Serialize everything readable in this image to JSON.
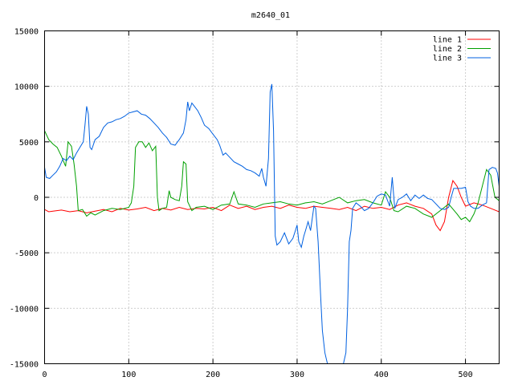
{
  "chart_data": {
    "type": "line",
    "title": "m2640_01",
    "xlabel": "",
    "ylabel": "",
    "xlim": [
      0,
      540
    ],
    "ylim": [
      -15000,
      15000
    ],
    "x_ticks": [
      0,
      100,
      200,
      300,
      400,
      500
    ],
    "y_ticks": [
      -15000,
      -10000,
      -5000,
      0,
      5000,
      10000,
      15000
    ],
    "grid": true,
    "legend_position": "top-right",
    "series": [
      {
        "name": "line 1",
        "color": "#ff0000",
        "points": [
          [
            0,
            -1100
          ],
          [
            5,
            -1300
          ],
          [
            10,
            -1250
          ],
          [
            20,
            -1150
          ],
          [
            30,
            -1300
          ],
          [
            40,
            -1200
          ],
          [
            50,
            -1400
          ],
          [
            60,
            -1250
          ],
          [
            70,
            -1100
          ],
          [
            80,
            -1300
          ],
          [
            90,
            -1000
          ],
          [
            100,
            -1150
          ],
          [
            110,
            -1050
          ],
          [
            120,
            -900
          ],
          [
            130,
            -1200
          ],
          [
            140,
            -1000
          ],
          [
            150,
            -1150
          ],
          [
            160,
            -900
          ],
          [
            170,
            -1100
          ],
          [
            180,
            -1000
          ],
          [
            190,
            -1050
          ],
          [
            200,
            -900
          ],
          [
            210,
            -1200
          ],
          [
            220,
            -700
          ],
          [
            230,
            -1000
          ],
          [
            240,
            -800
          ],
          [
            250,
            -1100
          ],
          [
            260,
            -900
          ],
          [
            270,
            -800
          ],
          [
            280,
            -1000
          ],
          [
            290,
            -700
          ],
          [
            300,
            -900
          ],
          [
            310,
            -1000
          ],
          [
            320,
            -800
          ],
          [
            330,
            -900
          ],
          [
            340,
            -1000
          ],
          [
            350,
            -1100
          ],
          [
            360,
            -900
          ],
          [
            370,
            -1200
          ],
          [
            380,
            -800
          ],
          [
            390,
            -1000
          ],
          [
            400,
            -900
          ],
          [
            410,
            -1100
          ],
          [
            420,
            -700
          ],
          [
            430,
            -500
          ],
          [
            440,
            -800
          ],
          [
            450,
            -1000
          ],
          [
            460,
            -1500
          ],
          [
            465,
            -2500
          ],
          [
            470,
            -3000
          ],
          [
            475,
            -2200
          ],
          [
            480,
            0
          ],
          [
            485,
            1500
          ],
          [
            490,
            1000
          ],
          [
            495,
            0
          ],
          [
            500,
            -800
          ],
          [
            510,
            -500
          ],
          [
            520,
            -700
          ],
          [
            530,
            -1000
          ],
          [
            540,
            -1300
          ]
        ]
      },
      {
        "name": "line 2",
        "color": "#00a000",
        "points": [
          [
            0,
            6000
          ],
          [
            5,
            5200
          ],
          [
            10,
            4800
          ],
          [
            15,
            4500
          ],
          [
            20,
            3700
          ],
          [
            25,
            2800
          ],
          [
            28,
            5000
          ],
          [
            32,
            4600
          ],
          [
            35,
            3000
          ],
          [
            38,
            1000
          ],
          [
            40,
            -1200
          ],
          [
            45,
            -1100
          ],
          [
            50,
            -1700
          ],
          [
            55,
            -1400
          ],
          [
            60,
            -1600
          ],
          [
            70,
            -1200
          ],
          [
            80,
            -1000
          ],
          [
            90,
            -1100
          ],
          [
            100,
            -900
          ],
          [
            103,
            -500
          ],
          [
            106,
            1000
          ],
          [
            108,
            4500
          ],
          [
            112,
            5000
          ],
          [
            116,
            5000
          ],
          [
            120,
            4500
          ],
          [
            124,
            4900
          ],
          [
            128,
            4200
          ],
          [
            132,
            4600
          ],
          [
            134,
            0
          ],
          [
            136,
            -1200
          ],
          [
            140,
            -1000
          ],
          [
            145,
            -900
          ],
          [
            148,
            600
          ],
          [
            150,
            0
          ],
          [
            155,
            -200
          ],
          [
            160,
            -300
          ],
          [
            163,
            1000
          ],
          [
            165,
            3200
          ],
          [
            168,
            3000
          ],
          [
            170,
            -400
          ],
          [
            175,
            -1200
          ],
          [
            180,
            -900
          ],
          [
            190,
            -800
          ],
          [
            200,
            -1100
          ],
          [
            210,
            -700
          ],
          [
            220,
            -600
          ],
          [
            225,
            500
          ],
          [
            230,
            -600
          ],
          [
            240,
            -700
          ],
          [
            250,
            -900
          ],
          [
            260,
            -600
          ],
          [
            270,
            -500
          ],
          [
            280,
            -400
          ],
          [
            290,
            -600
          ],
          [
            300,
            -700
          ],
          [
            310,
            -500
          ],
          [
            320,
            -400
          ],
          [
            330,
            -600
          ],
          [
            340,
            -300
          ],
          [
            350,
            0
          ],
          [
            360,
            -500
          ],
          [
            370,
            -300
          ],
          [
            380,
            -200
          ],
          [
            390,
            -500
          ],
          [
            400,
            -700
          ],
          [
            405,
            500
          ],
          [
            410,
            0
          ],
          [
            415,
            -1200
          ],
          [
            420,
            -1300
          ],
          [
            430,
            -800
          ],
          [
            440,
            -1000
          ],
          [
            450,
            -1500
          ],
          [
            460,
            -1800
          ],
          [
            470,
            -1200
          ],
          [
            480,
            -600
          ],
          [
            490,
            -1500
          ],
          [
            495,
            -2000
          ],
          [
            500,
            -1800
          ],
          [
            505,
            -2200
          ],
          [
            510,
            -1500
          ],
          [
            515,
            -500
          ],
          [
            520,
            1000
          ],
          [
            525,
            2500
          ],
          [
            530,
            2000
          ],
          [
            535,
            0
          ],
          [
            540,
            -300
          ]
        ]
      },
      {
        "name": "line 3",
        "color": "#0060e0",
        "points": [
          [
            0,
            2700
          ],
          [
            2,
            1800
          ],
          [
            6,
            1700
          ],
          [
            10,
            2000
          ],
          [
            14,
            2300
          ],
          [
            18,
            2800
          ],
          [
            22,
            3500
          ],
          [
            26,
            3300
          ],
          [
            30,
            3700
          ],
          [
            34,
            3400
          ],
          [
            38,
            4000
          ],
          [
            42,
            4500
          ],
          [
            46,
            5000
          ],
          [
            48,
            6500
          ],
          [
            50,
            8200
          ],
          [
            52,
            7500
          ],
          [
            54,
            4500
          ],
          [
            56,
            4300
          ],
          [
            60,
            5200
          ],
          [
            65,
            5500
          ],
          [
            70,
            6300
          ],
          [
            75,
            6700
          ],
          [
            80,
            6800
          ],
          [
            85,
            7000
          ],
          [
            90,
            7100
          ],
          [
            95,
            7300
          ],
          [
            100,
            7600
          ],
          [
            105,
            7700
          ],
          [
            110,
            7800
          ],
          [
            115,
            7500
          ],
          [
            120,
            7400
          ],
          [
            125,
            7100
          ],
          [
            130,
            6700
          ],
          [
            135,
            6300
          ],
          [
            140,
            5800
          ],
          [
            145,
            5400
          ],
          [
            150,
            4800
          ],
          [
            155,
            4700
          ],
          [
            160,
            5200
          ],
          [
            165,
            5800
          ],
          [
            168,
            7000
          ],
          [
            170,
            8600
          ],
          [
            172,
            7800
          ],
          [
            175,
            8500
          ],
          [
            178,
            8200
          ],
          [
            182,
            7800
          ],
          [
            186,
            7200
          ],
          [
            190,
            6500
          ],
          [
            195,
            6200
          ],
          [
            200,
            5700
          ],
          [
            205,
            5200
          ],
          [
            208,
            4700
          ],
          [
            212,
            3800
          ],
          [
            215,
            4000
          ],
          [
            220,
            3600
          ],
          [
            225,
            3200
          ],
          [
            230,
            3000
          ],
          [
            235,
            2800
          ],
          [
            240,
            2500
          ],
          [
            245,
            2400
          ],
          [
            250,
            2200
          ],
          [
            255,
            1900
          ],
          [
            258,
            2600
          ],
          [
            260,
            1800
          ],
          [
            263,
            1000
          ],
          [
            266,
            3500
          ],
          [
            268,
            9500
          ],
          [
            270,
            10200
          ],
          [
            272,
            6000
          ],
          [
            274,
            -3500
          ],
          [
            276,
            -4300
          ],
          [
            280,
            -4000
          ],
          [
            285,
            -3200
          ],
          [
            290,
            -4200
          ],
          [
            295,
            -3700
          ],
          [
            298,
            -3000
          ],
          [
            300,
            -2500
          ],
          [
            302,
            -4000
          ],
          [
            305,
            -4500
          ],
          [
            308,
            -3500
          ],
          [
            310,
            -3000
          ],
          [
            313,
            -2200
          ],
          [
            316,
            -3000
          ],
          [
            320,
            -800
          ],
          [
            322,
            -1000
          ],
          [
            325,
            -4000
          ],
          [
            328,
            -9000
          ],
          [
            330,
            -12000
          ],
          [
            333,
            -14000
          ],
          [
            336,
            -15000
          ],
          [
            340,
            -15000
          ],
          [
            345,
            -15000
          ],
          [
            350,
            -15000
          ],
          [
            355,
            -15000
          ],
          [
            358,
            -14000
          ],
          [
            360,
            -10000
          ],
          [
            362,
            -4000
          ],
          [
            364,
            -3000
          ],
          [
            366,
            -1000
          ],
          [
            370,
            -500
          ],
          [
            375,
            -800
          ],
          [
            380,
            -1200
          ],
          [
            385,
            -1000
          ],
          [
            390,
            -500
          ],
          [
            395,
            100
          ],
          [
            400,
            300
          ],
          [
            405,
            200
          ],
          [
            410,
            -800
          ],
          [
            413,
            1800
          ],
          [
            416,
            -1000
          ],
          [
            420,
            -200
          ],
          [
            425,
            0
          ],
          [
            430,
            300
          ],
          [
            435,
            -300
          ],
          [
            440,
            200
          ],
          [
            445,
            -100
          ],
          [
            450,
            200
          ],
          [
            455,
            -100
          ],
          [
            460,
            -200
          ],
          [
            465,
            -600
          ],
          [
            470,
            -1000
          ],
          [
            475,
            -1100
          ],
          [
            480,
            -900
          ],
          [
            483,
            0
          ],
          [
            486,
            800
          ],
          [
            490,
            800
          ],
          [
            495,
            800
          ],
          [
            500,
            900
          ],
          [
            503,
            -400
          ],
          [
            506,
            -800
          ],
          [
            510,
            -1000
          ],
          [
            515,
            -1000
          ],
          [
            520,
            -700
          ],
          [
            525,
            -500
          ],
          [
            528,
            2500
          ],
          [
            532,
            2700
          ],
          [
            536,
            2600
          ],
          [
            538,
            2200
          ],
          [
            540,
            1000
          ]
        ]
      }
    ]
  }
}
